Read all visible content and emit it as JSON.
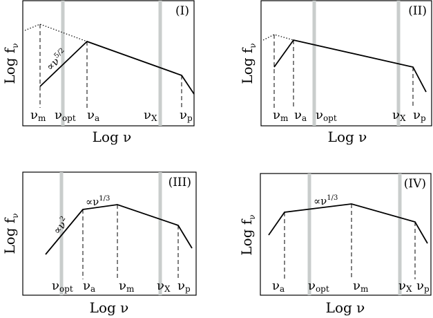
{
  "colors": {
    "band": "#c9cdcc",
    "line": "#000000",
    "frame": "#000000",
    "background": "#ffffff"
  },
  "panels": [
    {
      "id": "I",
      "label": "(I)",
      "ylabel": {
        "base": "Log f",
        "sub": "ν"
      },
      "xlabel": "Log ν",
      "ticks": [
        {
          "sym": "ν",
          "sub": "m"
        },
        {
          "sym": "ν",
          "sub": "opt"
        },
        {
          "sym": "ν",
          "sub": "a"
        },
        {
          "sym": "ν",
          "sub": "X"
        },
        {
          "sym": "ν",
          "sub": "p"
        }
      ],
      "annotations": [
        {
          "base": "∝ν",
          "exp": "5/2"
        }
      ]
    },
    {
      "id": "II",
      "label": "(II)",
      "ylabel": {
        "base": "Log f",
        "sub": "ν"
      },
      "xlabel": "Log ν",
      "ticks": [
        {
          "sym": "ν",
          "sub": "m"
        },
        {
          "sym": "ν",
          "sub": "a"
        },
        {
          "sym": "ν",
          "sub": "opt"
        },
        {
          "sym": "ν",
          "sub": "X"
        },
        {
          "sym": "ν",
          "sub": "p"
        }
      ],
      "annotations": []
    },
    {
      "id": "III",
      "label": "(III)",
      "ylabel": {
        "base": "Log f",
        "sub": "ν"
      },
      "xlabel": "Log ν",
      "ticks": [
        {
          "sym": "ν",
          "sub": "opt"
        },
        {
          "sym": "ν",
          "sub": "a"
        },
        {
          "sym": "ν",
          "sub": "m"
        },
        {
          "sym": "ν",
          "sub": "X"
        },
        {
          "sym": "ν",
          "sub": "p"
        }
      ],
      "annotations": [
        {
          "base": "∝ν",
          "exp": "2"
        },
        {
          "base": "∝ν",
          "exp": "1/3"
        }
      ]
    },
    {
      "id": "IV",
      "label": "(IV)",
      "ylabel": {
        "base": "Log f",
        "sub": "ν"
      },
      "xlabel": "Log ν",
      "ticks": [
        {
          "sym": "ν",
          "sub": "a"
        },
        {
          "sym": "ν",
          "sub": "opt"
        },
        {
          "sym": "ν",
          "sub": "m"
        },
        {
          "sym": "ν",
          "sub": "X"
        },
        {
          "sym": "ν",
          "sub": "p"
        }
      ],
      "annotations": [
        {
          "base": "∝ν",
          "exp": "1/3"
        }
      ]
    }
  ]
}
